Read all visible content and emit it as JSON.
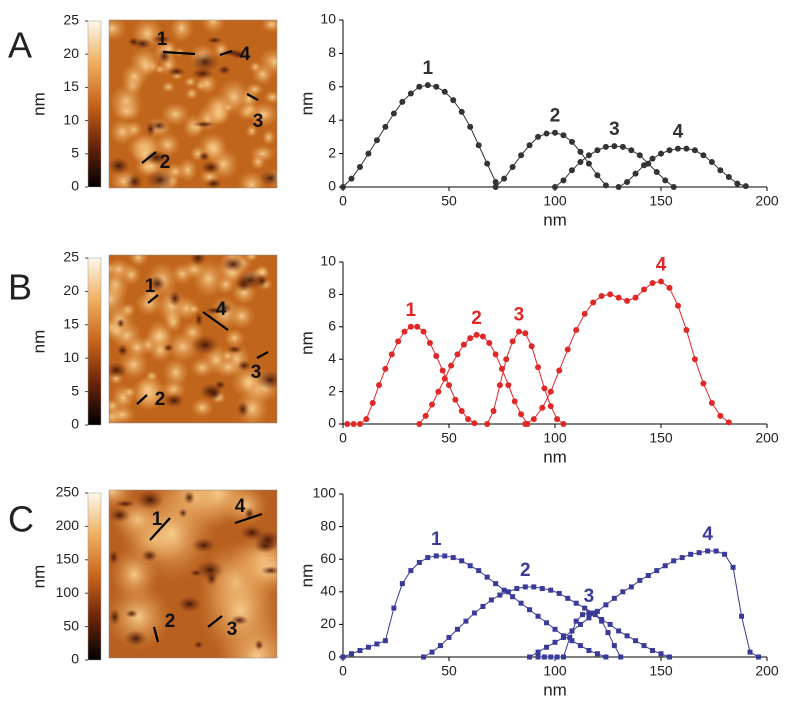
{
  "chart_data": [
    {
      "type": "line",
      "panel_label": "A",
      "colorbar_label": "nm",
      "colorbar_lim": [
        0,
        25
      ],
      "colorbar_ticks": [
        0,
        5,
        10,
        15,
        20,
        25
      ],
      "xlabel": "nm",
      "ylabel": "nm",
      "xlim": [
        0,
        200
      ],
      "xticks": [
        0,
        50,
        100,
        150,
        200
      ],
      "ylim": [
        0,
        10
      ],
      "yticks": [
        0,
        2,
        4,
        6,
        8,
        10
      ],
      "marker": "circle",
      "series": [
        {
          "name": "1",
          "color": "#333333",
          "x": [
            0,
            4,
            8,
            12,
            16,
            20,
            24,
            28,
            32,
            36,
            40,
            44,
            48,
            52,
            56,
            60,
            64,
            68,
            72
          ],
          "values": [
            0,
            0.5,
            1.2,
            2.0,
            2.8,
            3.6,
            4.4,
            5.1,
            5.6,
            6.0,
            6.1,
            6.0,
            5.7,
            5.2,
            4.5,
            3.6,
            2.5,
            1.4,
            0.3
          ]
        },
        {
          "name": "2",
          "color": "#333333",
          "x": [
            72,
            76,
            80,
            84,
            88,
            92,
            96,
            100,
            104,
            108,
            112,
            116,
            120,
            124
          ],
          "values": [
            0,
            0.5,
            1.2,
            1.9,
            2.5,
            3.0,
            3.2,
            3.25,
            3.1,
            2.7,
            2.1,
            1.4,
            0.7,
            0.1
          ]
        },
        {
          "name": "3",
          "color": "#333333",
          "x": [
            100,
            104,
            108,
            112,
            116,
            120,
            124,
            128,
            132,
            136,
            140,
            144,
            148,
            152,
            156
          ],
          "values": [
            0,
            0.4,
            1.0,
            1.5,
            1.9,
            2.2,
            2.4,
            2.45,
            2.4,
            2.2,
            1.9,
            1.4,
            0.9,
            0.4,
            0
          ]
        },
        {
          "name": "4",
          "color": "#333333",
          "x": [
            130,
            134,
            138,
            142,
            146,
            150,
            154,
            158,
            162,
            166,
            170,
            174,
            178,
            182,
            186,
            190
          ],
          "values": [
            0,
            0.3,
            0.8,
            1.3,
            1.7,
            2.0,
            2.2,
            2.3,
            2.3,
            2.2,
            1.9,
            1.5,
            1.0,
            0.6,
            0.2,
            0.05
          ]
        }
      ]
    },
    {
      "type": "line",
      "panel_label": "B",
      "colorbar_label": "nm",
      "colorbar_lim": [
        0,
        25
      ],
      "colorbar_ticks": [
        0,
        5,
        10,
        15,
        20,
        25
      ],
      "xlabel": "nm",
      "ylabel": "nm",
      "xlim": [
        0,
        200
      ],
      "xticks": [
        0,
        50,
        100,
        150,
        200
      ],
      "ylim": [
        0,
        10
      ],
      "yticks": [
        0,
        2,
        4,
        6,
        8,
        10
      ],
      "marker": "circle",
      "series": [
        {
          "name": "1",
          "color": "#e02828",
          "x": [
            2,
            5,
            8,
            11,
            14,
            17,
            20,
            23,
            26,
            29,
            32,
            35,
            38,
            41,
            44,
            47,
            50,
            53,
            56,
            59,
            62
          ],
          "values": [
            0,
            0,
            0,
            0.3,
            1.3,
            2.4,
            3.4,
            4.3,
            5.1,
            5.7,
            6.0,
            6.0,
            5.7,
            5.0,
            4.2,
            3.3,
            2.4,
            1.5,
            0.8,
            0.3,
            0.05
          ]
        },
        {
          "name": "2",
          "color": "#e02828",
          "x": [
            36,
            39,
            42,
            45,
            48,
            51,
            54,
            57,
            60,
            63,
            66,
            69,
            72,
            75,
            78,
            81,
            84,
            87
          ],
          "values": [
            0,
            0.5,
            1.2,
            2.0,
            2.8,
            3.6,
            4.3,
            4.9,
            5.3,
            5.5,
            5.4,
            5.0,
            4.3,
            3.4,
            2.4,
            1.4,
            0.6,
            0
          ]
        },
        {
          "name": "3",
          "color": "#e02828",
          "x": [
            68,
            71,
            74,
            77,
            80,
            83,
            86,
            89,
            92,
            95,
            98,
            101,
            104
          ],
          "values": [
            0,
            0.8,
            2.4,
            4.0,
            5.1,
            5.7,
            5.6,
            4.8,
            3.5,
            2.2,
            1.1,
            0.3,
            0
          ]
        },
        {
          "name": "4",
          "color": "#e02828",
          "x": [
            86,
            90,
            94,
            98,
            102,
            106,
            110,
            114,
            118,
            122,
            126,
            130,
            134,
            138,
            142,
            146,
            150,
            154,
            158,
            162,
            166,
            170,
            174,
            178,
            182
          ],
          "values": [
            0,
            0.3,
            1.0,
            2.0,
            3.3,
            4.6,
            5.8,
            6.8,
            7.5,
            7.9,
            8.0,
            7.8,
            7.6,
            7.8,
            8.3,
            8.7,
            8.8,
            8.4,
            7.3,
            5.8,
            4.0,
            2.5,
            1.3,
            0.5,
            0.1
          ]
        }
      ]
    },
    {
      "type": "line",
      "panel_label": "C",
      "colorbar_label": "nm",
      "colorbar_lim": [
        0,
        250
      ],
      "colorbar_ticks": [
        0,
        50,
        100,
        150,
        200,
        250
      ],
      "xlabel": "nm",
      "ylabel": "nm",
      "xlim": [
        0,
        200
      ],
      "xticks": [
        0,
        50,
        100,
        150,
        200
      ],
      "ylim": [
        0,
        100
      ],
      "yticks": [
        0,
        20,
        40,
        60,
        80,
        100
      ],
      "marker": "square",
      "series": [
        {
          "name": "1",
          "color": "#3a3a98",
          "x": [
            0,
            4,
            8,
            12,
            16,
            20,
            24,
            28,
            32,
            36,
            40,
            44,
            48,
            52,
            56,
            60,
            64,
            68,
            72,
            76,
            80,
            84,
            88,
            92,
            96,
            100,
            104,
            108,
            112,
            116,
            120,
            124
          ],
          "values": [
            0,
            2,
            4,
            6,
            8,
            10,
            30,
            45,
            53,
            58,
            61,
            62,
            62,
            61,
            59,
            56,
            53,
            49,
            45,
            41,
            37,
            33,
            29,
            25,
            21,
            17,
            13,
            10,
            7,
            4,
            2,
            0
          ]
        },
        {
          "name": "2",
          "color": "#3a3a98",
          "x": [
            38,
            42,
            46,
            50,
            54,
            58,
            62,
            66,
            70,
            74,
            78,
            82,
            86,
            90,
            94,
            98,
            102,
            106,
            110,
            114,
            118,
            122,
            126,
            130,
            134,
            138,
            142,
            146,
            150,
            154
          ],
          "values": [
            0,
            3,
            7,
            12,
            17,
            22,
            27,
            31,
            35,
            38,
            40,
            42,
            43,
            43,
            42,
            41,
            39,
            36,
            33,
            30,
            27,
            23,
            20,
            16,
            13,
            10,
            7,
            4,
            2,
            0
          ]
        },
        {
          "name": "3",
          "color": "#3a3a98",
          "x": [
            92,
            95,
            98,
            101,
            104,
            107,
            110,
            113,
            116,
            119,
            122,
            125,
            128,
            131
          ],
          "values": [
            0,
            0,
            0,
            0,
            0,
            12,
            22,
            26,
            27,
            26,
            22,
            15,
            7,
            0
          ]
        },
        {
          "name": "4",
          "color": "#3a3a98",
          "x": [
            88,
            92,
            96,
            100,
            104,
            108,
            112,
            116,
            120,
            124,
            128,
            132,
            136,
            140,
            144,
            148,
            152,
            156,
            160,
            164,
            168,
            172,
            176,
            180,
            184,
            188,
            192,
            196
          ],
          "values": [
            0,
            3,
            6,
            9,
            12,
            16,
            20,
            24,
            28,
            32,
            36,
            40,
            43,
            47,
            50,
            53,
            56,
            59,
            61,
            63,
            64,
            65,
            65,
            63,
            55,
            25,
            3,
            0
          ]
        }
      ]
    }
  ]
}
